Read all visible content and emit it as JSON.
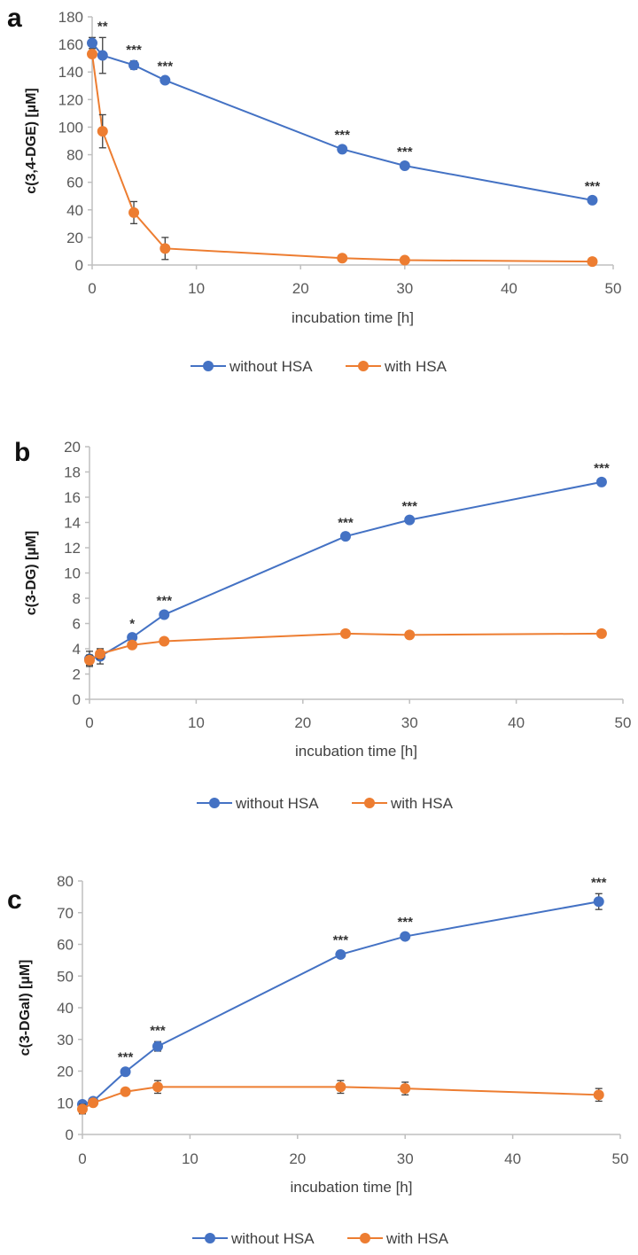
{
  "colors": {
    "without": "#4472C4",
    "with": "#ED7D31",
    "axis": "#BFBFBF",
    "error": "#404040"
  },
  "chart_data": [
    {
      "type": "line",
      "panel_label": "a",
      "xlabel": "incubation time [h]",
      "ylabel": "c(3,4-DGE) [µM]",
      "xlim": [
        0,
        50
      ],
      "ylim": [
        0,
        180
      ],
      "xticks": [
        0,
        10,
        20,
        30,
        40,
        50
      ],
      "yticks": [
        0,
        20,
        40,
        60,
        80,
        100,
        120,
        140,
        160,
        180
      ],
      "x": [
        0,
        1,
        4,
        7,
        24,
        30,
        48
      ],
      "series": [
        {
          "name": "without HSA",
          "values": [
            161,
            152,
            145,
            134,
            84,
            72,
            47
          ],
          "errors": [
            4,
            13,
            3,
            2,
            2,
            2,
            2
          ]
        },
        {
          "name": "with HSA",
          "values": [
            153,
            97,
            38,
            12,
            5,
            3.5,
            2.5
          ],
          "errors": [
            2,
            12,
            8,
            8,
            1,
            1,
            1
          ]
        }
      ],
      "significance": [
        {
          "x": 1,
          "label": "**"
        },
        {
          "x": 4,
          "label": "***"
        },
        {
          "x": 7,
          "label": "***"
        },
        {
          "x": 24,
          "label": "***"
        },
        {
          "x": 30,
          "label": "***"
        },
        {
          "x": 48,
          "label": "***"
        }
      ],
      "legend": "bottom"
    },
    {
      "type": "line",
      "panel_label": "b",
      "xlabel": "incubation time [h]",
      "ylabel": "c(3-DG) [µM]",
      "xlim": [
        0,
        50
      ],
      "ylim": [
        0,
        20
      ],
      "xticks": [
        0,
        10,
        20,
        30,
        40,
        50
      ],
      "yticks": [
        0,
        2,
        4,
        6,
        8,
        10,
        12,
        14,
        16,
        18,
        20
      ],
      "x": [
        0,
        1,
        4,
        7,
        24,
        30,
        48
      ],
      "series": [
        {
          "name": "without HSA",
          "values": [
            3.2,
            3.4,
            4.9,
            6.7,
            12.9,
            14.2,
            17.2
          ],
          "errors": [
            0.6,
            0.6,
            0.2,
            0.2,
            0.2,
            0.2,
            0.2
          ]
        },
        {
          "name": "with HSA",
          "values": [
            3.1,
            3.6,
            4.3,
            4.6,
            5.2,
            5.1,
            5.2
          ],
          "errors": [
            0.4,
            0.4,
            0.2,
            0.2,
            0.1,
            0.1,
            0.1
          ]
        }
      ],
      "significance": [
        {
          "x": 4,
          "label": "*"
        },
        {
          "x": 7,
          "label": "***"
        },
        {
          "x": 24,
          "label": "***"
        },
        {
          "x": 30,
          "label": "***"
        },
        {
          "x": 48,
          "label": "***"
        }
      ],
      "legend": "bottom"
    },
    {
      "type": "line",
      "panel_label": "c",
      "xlabel": "incubation time [h]",
      "ylabel": "c(3-DGal) [µM]",
      "xlim": [
        0,
        50
      ],
      "ylim": [
        0,
        80
      ],
      "xticks": [
        0,
        10,
        20,
        30,
        40,
        50
      ],
      "yticks": [
        0,
        10,
        20,
        30,
        40,
        50,
        60,
        70,
        80
      ],
      "x": [
        0,
        1,
        4,
        7,
        24,
        30,
        48
      ],
      "series": [
        {
          "name": "without HSA",
          "values": [
            9.5,
            10.5,
            19.8,
            27.8,
            56.8,
            62.5,
            73.5
          ],
          "errors": [
            1,
            1,
            1,
            1.5,
            1,
            1,
            2.5
          ]
        },
        {
          "name": "with HSA",
          "values": [
            8,
            10,
            13.5,
            15,
            15,
            14.5,
            12.5
          ],
          "errors": [
            1.5,
            1,
            1,
            2,
            2,
            2,
            2
          ]
        }
      ],
      "significance": [
        {
          "x": 4,
          "label": "***"
        },
        {
          "x": 7,
          "label": "***"
        },
        {
          "x": 24,
          "label": "***"
        },
        {
          "x": 30,
          "label": "***"
        },
        {
          "x": 48,
          "label": "***"
        }
      ],
      "legend": "bottom"
    }
  ]
}
